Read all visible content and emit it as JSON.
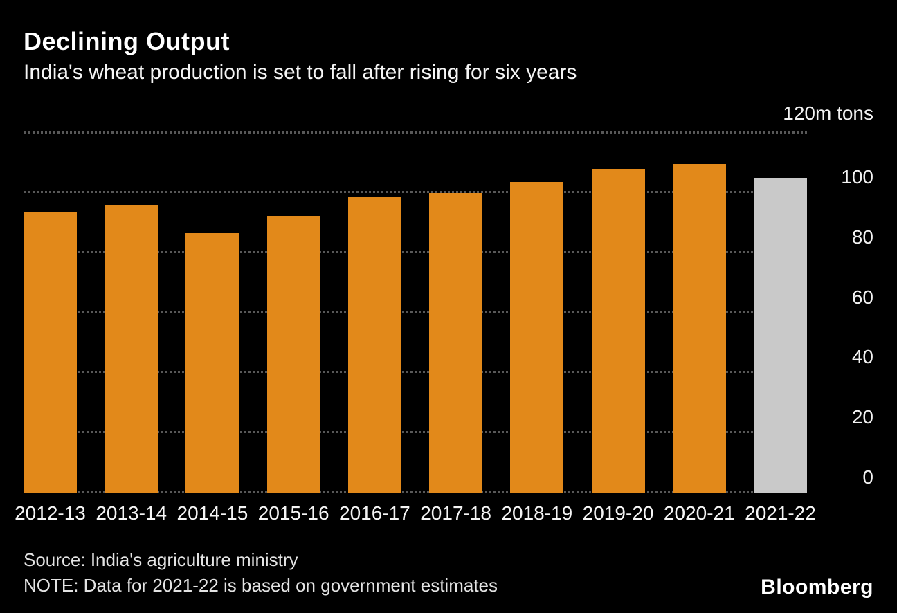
{
  "header": {
    "title": "Declining Output",
    "subtitle": "India's wheat production is set to fall after rising for six years"
  },
  "chart_data": {
    "type": "bar",
    "categories": [
      "2012-13",
      "2013-14",
      "2014-15",
      "2015-16",
      "2016-17",
      "2017-18",
      "2018-19",
      "2019-20",
      "2020-21",
      "2021-22"
    ],
    "values": [
      93.5,
      95.9,
      86.5,
      92.3,
      98.5,
      99.9,
      103.6,
      107.9,
      109.6,
      105.0
    ],
    "title": "Declining Output",
    "subtitle": "India's wheat production is set to fall after rising for six years",
    "unit_label": "120m tons",
    "xlabel": "",
    "ylabel": "m tons",
    "ylim": [
      0,
      120
    ],
    "yticks": [
      0,
      20,
      40,
      60,
      80,
      100,
      120
    ],
    "grid": "dotted-horizontal",
    "legend": "none",
    "bar_colors": {
      "default": "#E2891A",
      "estimate": "#C9C9C9"
    },
    "estimate_index": 9,
    "background_color": "#000000"
  },
  "footer": {
    "source": "Source: India's agriculture ministry",
    "note": "NOTE: Data for 2021-22 is based on government estimates",
    "brand": "Bloomberg"
  }
}
